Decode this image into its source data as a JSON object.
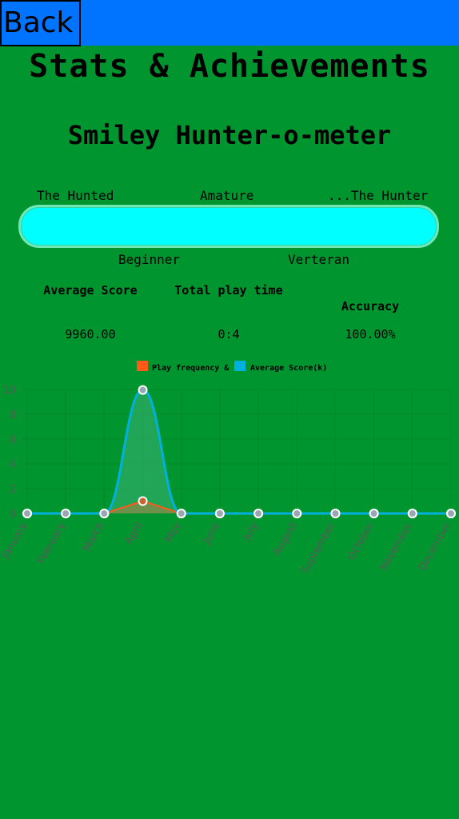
{
  "header": {
    "back_label": "Back"
  },
  "page": {
    "title": "Stats & Achievements",
    "subtitle": "Smiley Hunter-o-meter"
  },
  "meter": {
    "top_labels": [
      "The Hunted",
      "Amature",
      "...The Hunter"
    ],
    "bottom_labels": [
      "Beginner",
      "Verteran"
    ],
    "fill_fraction": 1.0,
    "fill_color": "#00ffff"
  },
  "stats": {
    "average_score": {
      "label": "Average Score",
      "value": "9960.00"
    },
    "total_play_time": {
      "label": "Total play time",
      "value": "0:4"
    },
    "accuracy": {
      "label": "Accuracy",
      "value": "100.00%"
    }
  },
  "colors": {
    "background": "#00952f",
    "topbar": "#0073ff",
    "series_frequency": "#ff5a1a",
    "series_score": "#00b0e0"
  },
  "chart_data": {
    "type": "line",
    "legend": [
      "Play frequency &",
      "Average Score(k)"
    ],
    "legend_position": "top",
    "categories": [
      "January",
      "February",
      "March",
      "April",
      "May",
      "June",
      "July",
      "August",
      "September",
      "October",
      "November",
      "December"
    ],
    "series": [
      {
        "name": "Play frequency &",
        "values": [
          0,
          0,
          0,
          1,
          0,
          0,
          0,
          0,
          0,
          0,
          0,
          0
        ]
      },
      {
        "name": "Average Score(k)",
        "values": [
          0,
          0,
          0,
          9.96,
          0,
          0,
          0,
          0,
          0,
          0,
          0,
          0
        ]
      }
    ],
    "yticks": [
      "0",
      "2",
      "4",
      "6",
      "8",
      "10"
    ],
    "ylim": [
      0,
      10
    ],
    "grid": true
  }
}
